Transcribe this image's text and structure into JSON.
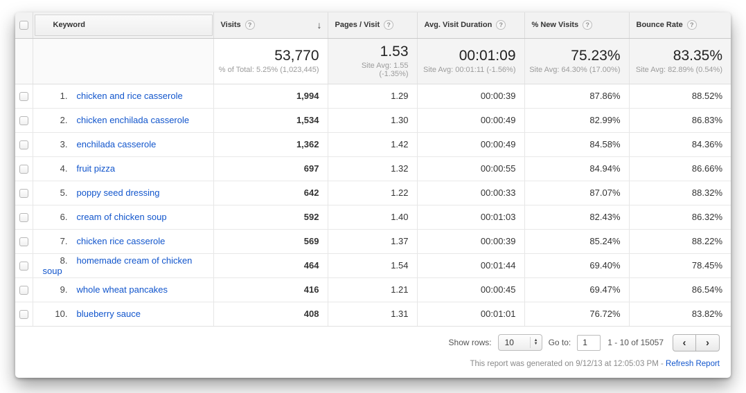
{
  "colors": {
    "link_blue": "#1155cc",
    "header_bg": "#f2f2f2",
    "summary_bg": "#f4f4f4",
    "text_dark": "#333333",
    "text_muted": "#9b9b9b"
  },
  "icons": {
    "help_glyph": "?",
    "sort_descending_glyph": "↓",
    "stepper_up_glyph": "▲",
    "stepper_down_glyph": "▼",
    "prev_glyph": "‹",
    "next_glyph": "›"
  },
  "table": {
    "columns": {
      "keyword": {
        "label": "Keyword"
      },
      "visits": {
        "label": "Visits"
      },
      "pages": {
        "label": "Pages / Visit"
      },
      "duration": {
        "label": "Avg. Visit Duration"
      },
      "new_visits": {
        "label": "% New Visits"
      },
      "bounce": {
        "label": "Bounce Rate"
      }
    },
    "summary": {
      "visits": "53,770",
      "visits_sub": "% of Total: 5.25% (1,023,445)",
      "pages": "1.53",
      "pages_sub": "Site Avg: 1.55 (-1.35%)",
      "duration": "00:01:09",
      "duration_sub": "Site Avg: 00:01:11 (-1.56%)",
      "new_visits": "75.23%",
      "new_visits_sub": "Site Avg: 64.30% (17.00%)",
      "bounce": "83.35%",
      "bounce_sub": "Site Avg: 82.89% (0.54%)"
    },
    "rows": [
      {
        "index": "1.",
        "keyword": "chicken and rice casserole",
        "visits": "1,994",
        "pages": "1.29",
        "duration": "00:00:39",
        "new_visits": "87.86%",
        "bounce": "88.52%"
      },
      {
        "index": "2.",
        "keyword": "chicken enchilada casserole",
        "visits": "1,534",
        "pages": "1.30",
        "duration": "00:00:49",
        "new_visits": "82.99%",
        "bounce": "86.83%"
      },
      {
        "index": "3.",
        "keyword": "enchilada casserole",
        "visits": "1,362",
        "pages": "1.42",
        "duration": "00:00:49",
        "new_visits": "84.58%",
        "bounce": "84.36%"
      },
      {
        "index": "4.",
        "keyword": "fruit pizza",
        "visits": "697",
        "pages": "1.32",
        "duration": "00:00:55",
        "new_visits": "84.94%",
        "bounce": "86.66%"
      },
      {
        "index": "5.",
        "keyword": "poppy seed dressing",
        "visits": "642",
        "pages": "1.22",
        "duration": "00:00:33",
        "new_visits": "87.07%",
        "bounce": "88.32%"
      },
      {
        "index": "6.",
        "keyword": "cream of chicken soup",
        "visits": "592",
        "pages": "1.40",
        "duration": "00:01:03",
        "new_visits": "82.43%",
        "bounce": "86.32%"
      },
      {
        "index": "7.",
        "keyword": "chicken rice casserole",
        "visits": "569",
        "pages": "1.37",
        "duration": "00:00:39",
        "new_visits": "85.24%",
        "bounce": "88.22%"
      },
      {
        "index": "8.",
        "keyword": "homemade cream of chicken soup",
        "visits": "464",
        "pages": "1.54",
        "duration": "00:01:44",
        "new_visits": "69.40%",
        "bounce": "78.45%"
      },
      {
        "index": "9.",
        "keyword": "whole wheat pancakes",
        "visits": "416",
        "pages": "1.21",
        "duration": "00:00:45",
        "new_visits": "69.47%",
        "bounce": "86.54%"
      },
      {
        "index": "10.",
        "keyword": "blueberry sauce",
        "visits": "408",
        "pages": "1.31",
        "duration": "00:01:01",
        "new_visits": "76.72%",
        "bounce": "83.82%"
      }
    ]
  },
  "pagination": {
    "show_rows_label": "Show rows:",
    "show_rows_value": "10",
    "goto_label": "Go to:",
    "goto_value": "1",
    "range": "1 - 10 of 15057"
  },
  "footer": {
    "generated_text": "This report was generated on 9/12/13 at 12:05:03 PM - ",
    "refresh_link": "Refresh Report"
  }
}
